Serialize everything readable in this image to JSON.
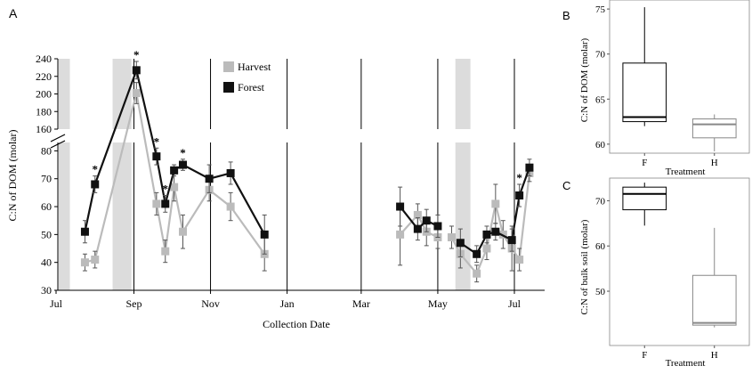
{
  "chart_data": [
    {
      "panel": "A",
      "type": "line",
      "xlabel": "Collection Date",
      "ylabel": "C:N of DOM (molar)",
      "x_ticks": [
        "Jul",
        "Sep",
        "Nov",
        "Jan",
        "Mar",
        "May",
        "Jul"
      ],
      "x_tick_dates": [
        "2014-07-01",
        "2014-09-01",
        "2014-11-01",
        "2015-01-01",
        "2015-03-01",
        "2015-05-01",
        "2015-07-01"
      ],
      "y_axis": "broken",
      "y_ticks_lower": [
        30,
        40,
        50,
        60,
        70,
        80
      ],
      "y_ticks_upper": [
        160,
        180,
        200,
        220,
        240
      ],
      "ylim_lower": [
        30,
        83
      ],
      "ylim_upper": [
        160,
        240
      ],
      "legend_position": "top-center",
      "shaded_periods": [
        [
          "2014-07-03",
          "2014-07-12"
        ],
        [
          "2014-08-15",
          "2014-08-30"
        ],
        [
          "2015-05-15",
          "2015-05-27"
        ]
      ],
      "vertical_lines": [
        "2014-09-01",
        "2014-11-01",
        "2015-01-01",
        "2015-03-01",
        "2015-05-01",
        "2015-07-01"
      ],
      "significance_marker": "*",
      "series": [
        {
          "name": "Forest",
          "color": "#111111",
          "marker": "square",
          "segments": [
            [
              {
                "x": "2014-07-24",
                "y": 51,
                "err": 4
              },
              {
                "x": "2014-08-01",
                "y": 68,
                "err": 3,
                "sig": true
              },
              {
                "x": "2014-09-03",
                "y": 227,
                "err": 10,
                "sig": true
              },
              {
                "x": "2014-09-19",
                "y": 78,
                "err": 3,
                "sig": true
              },
              {
                "x": "2014-09-26",
                "y": 61,
                "err": 3,
                "sig": true
              },
              {
                "x": "2014-10-03",
                "y": 73,
                "err": 2
              },
              {
                "x": "2014-10-10",
                "y": 75,
                "err": 2,
                "sig": true
              },
              {
                "x": "2014-10-31",
                "y": 70,
                "err": 5
              },
              {
                "x": "2014-11-17",
                "y": 72,
                "err": 4
              },
              {
                "x": "2014-12-14",
                "y": 50,
                "err": 7
              }
            ],
            [
              {
                "x": "2015-04-01",
                "y": 60,
                "err": 7
              },
              {
                "x": "2015-04-15",
                "y": 52,
                "err": 4
              },
              {
                "x": "2015-04-22",
                "y": 55,
                "err": 4
              },
              {
                "x": "2015-05-01",
                "y": 53,
                "err": 4
              }
            ],
            [
              {
                "x": "2015-05-19",
                "y": 47,
                "err": 5
              },
              {
                "x": "2015-06-01",
                "y": 43,
                "err": 3
              },
              {
                "x": "2015-06-09",
                "y": 50,
                "err": 3
              },
              {
                "x": "2015-06-16",
                "y": 51,
                "err": 3
              },
              {
                "x": "2015-06-29",
                "y": 48,
                "err": 4
              },
              {
                "x": "2015-07-05",
                "y": 64,
                "err": 4,
                "sig": true
              },
              {
                "x": "2015-07-13",
                "y": 74,
                "err": 3
              }
            ]
          ]
        },
        {
          "name": "Harvest",
          "color": "#bbbbbb",
          "marker": "square",
          "segments": [
            [
              {
                "x": "2014-07-24",
                "y": 40,
                "err": 3
              },
              {
                "x": "2014-08-01",
                "y": 41,
                "err": 3
              },
              {
                "x": "2014-09-03",
                "y": 201,
                "err": 12
              },
              {
                "x": "2014-09-19",
                "y": 61,
                "err": 4
              },
              {
                "x": "2014-09-26",
                "y": 44,
                "err": 4
              },
              {
                "x": "2014-10-03",
                "y": 67,
                "err": 5
              },
              {
                "x": "2014-10-10",
                "y": 51,
                "err": 6
              },
              {
                "x": "2014-10-31",
                "y": 66,
                "err": 4
              },
              {
                "x": "2014-11-17",
                "y": 60,
                "err": 5
              },
              {
                "x": "2014-12-14",
                "y": 43,
                "err": 6
              }
            ],
            [
              {
                "x": "2015-04-01",
                "y": 50,
                "err": 11
              },
              {
                "x": "2015-04-15",
                "y": 57,
                "err": 4
              },
              {
                "x": "2015-04-22",
                "y": 51,
                "err": 5
              },
              {
                "x": "2015-05-01",
                "y": 49,
                "err": 4
              }
            ],
            [
              {
                "x": "2015-05-12",
                "y": 49,
                "err": 4
              },
              {
                "x": "2015-05-19",
                "y": 43,
                "err": 5
              },
              {
                "x": "2015-06-01",
                "y": 36,
                "err": 3
              },
              {
                "x": "2015-06-09",
                "y": 45,
                "err": 4
              },
              {
                "x": "2015-06-16",
                "y": 61,
                "err": 7
              },
              {
                "x": "2015-06-22",
                "y": 50,
                "err": 5
              },
              {
                "x": "2015-06-29",
                "y": 45,
                "err": 8
              },
              {
                "x": "2015-07-05",
                "y": 41,
                "err": 4
              },
              {
                "x": "2015-07-13",
                "y": 72,
                "err": 3
              }
            ]
          ]
        }
      ]
    },
    {
      "panel": "B",
      "type": "boxplot",
      "xlabel": "Treatment",
      "ylabel": "C:N of DOM (molar)",
      "categories": [
        "F",
        "H"
      ],
      "ylim": [
        59,
        76
      ],
      "y_ticks": [
        60,
        65,
        70,
        75
      ],
      "boxes": [
        {
          "category": "F",
          "min": 62.0,
          "q1": 62.5,
          "median": 63.0,
          "q3": 69.0,
          "max": 75.2
        },
        {
          "category": "H",
          "min": 59.2,
          "q1": 60.7,
          "median": 62.2,
          "q3": 62.8,
          "max": 63.3
        }
      ]
    },
    {
      "panel": "C",
      "type": "boxplot",
      "xlabel": "Treatment",
      "ylabel": "C:N of bulk soil (molar)",
      "categories": [
        "F",
        "H"
      ],
      "ylim": [
        38,
        75
      ],
      "y_ticks": [
        50,
        60,
        70
      ],
      "boxes": [
        {
          "category": "F",
          "min": 64.5,
          "q1": 68.0,
          "median": 71.5,
          "q3": 73.0,
          "max": 74.0
        },
        {
          "category": "H",
          "min": 42.0,
          "q1": 42.5,
          "median": 43.0,
          "q3": 53.5,
          "max": 64.0
        }
      ]
    }
  ]
}
